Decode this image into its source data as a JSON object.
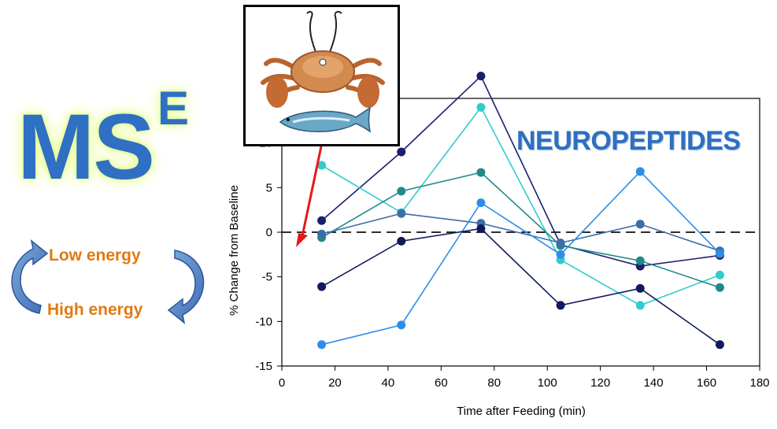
{
  "logo": {
    "main": "MS",
    "superscript": "E"
  },
  "cycle": {
    "top_label": "Low energy",
    "bottom_label": "High energy"
  },
  "colors": {
    "accent_blue": "#2f6fc4",
    "energy_orange": "#e07a12",
    "arrow_red": "#e8161a"
  },
  "chart_data": {
    "type": "line",
    "title": "NEUROPEPTIDES",
    "xlabel": "Time after Feeding (min)",
    "ylabel": "% Change from Baseline",
    "xlim": [
      0,
      180
    ],
    "ylim": [
      -15,
      15
    ],
    "xticks": [
      0,
      20,
      40,
      60,
      80,
      100,
      120,
      140,
      160,
      180
    ],
    "yticks": [
      -15,
      -10,
      -5,
      0,
      5,
      10
    ],
    "x": [
      15,
      45,
      75,
      105,
      135,
      165
    ],
    "baseline": 0,
    "series": [
      {
        "color": "#1b1f6e",
        "values": [
          1.3,
          9.0,
          17.5,
          -1.4,
          -3.8,
          -2.6
        ]
      },
      {
        "color": "#33cccc",
        "values": [
          7.5,
          2.2,
          14.0,
          -3.1,
          -8.2,
          -4.8
        ]
      },
      {
        "color": "#1f8a8a",
        "values": [
          -0.6,
          4.6,
          6.7,
          -1.5,
          -3.2,
          -6.2
        ]
      },
      {
        "color": "#3a6fa8",
        "values": [
          -0.2,
          2.1,
          1.0,
          -1.2,
          0.9,
          -2.1
        ]
      },
      {
        "color": "#2e8de8",
        "values": [
          -12.6,
          -10.4,
          3.3,
          -2.5,
          6.8,
          -2.4
        ]
      },
      {
        "color": "#111a5c",
        "values": [
          -6.1,
          -1.0,
          0.4,
          -8.2,
          -6.3,
          -12.6
        ]
      }
    ]
  }
}
